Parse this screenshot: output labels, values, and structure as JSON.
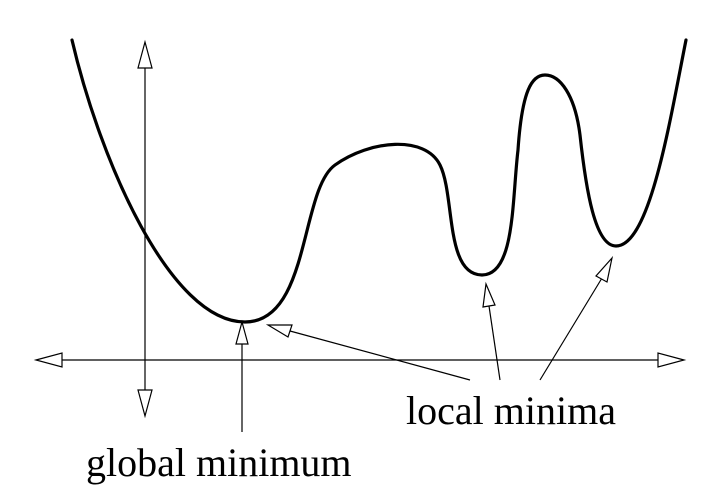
{
  "labels": {
    "local_minima": "local minima",
    "global_minimum": "global minimum"
  },
  "colors": {
    "ink": "#000000",
    "background": "#ffffff"
  }
}
